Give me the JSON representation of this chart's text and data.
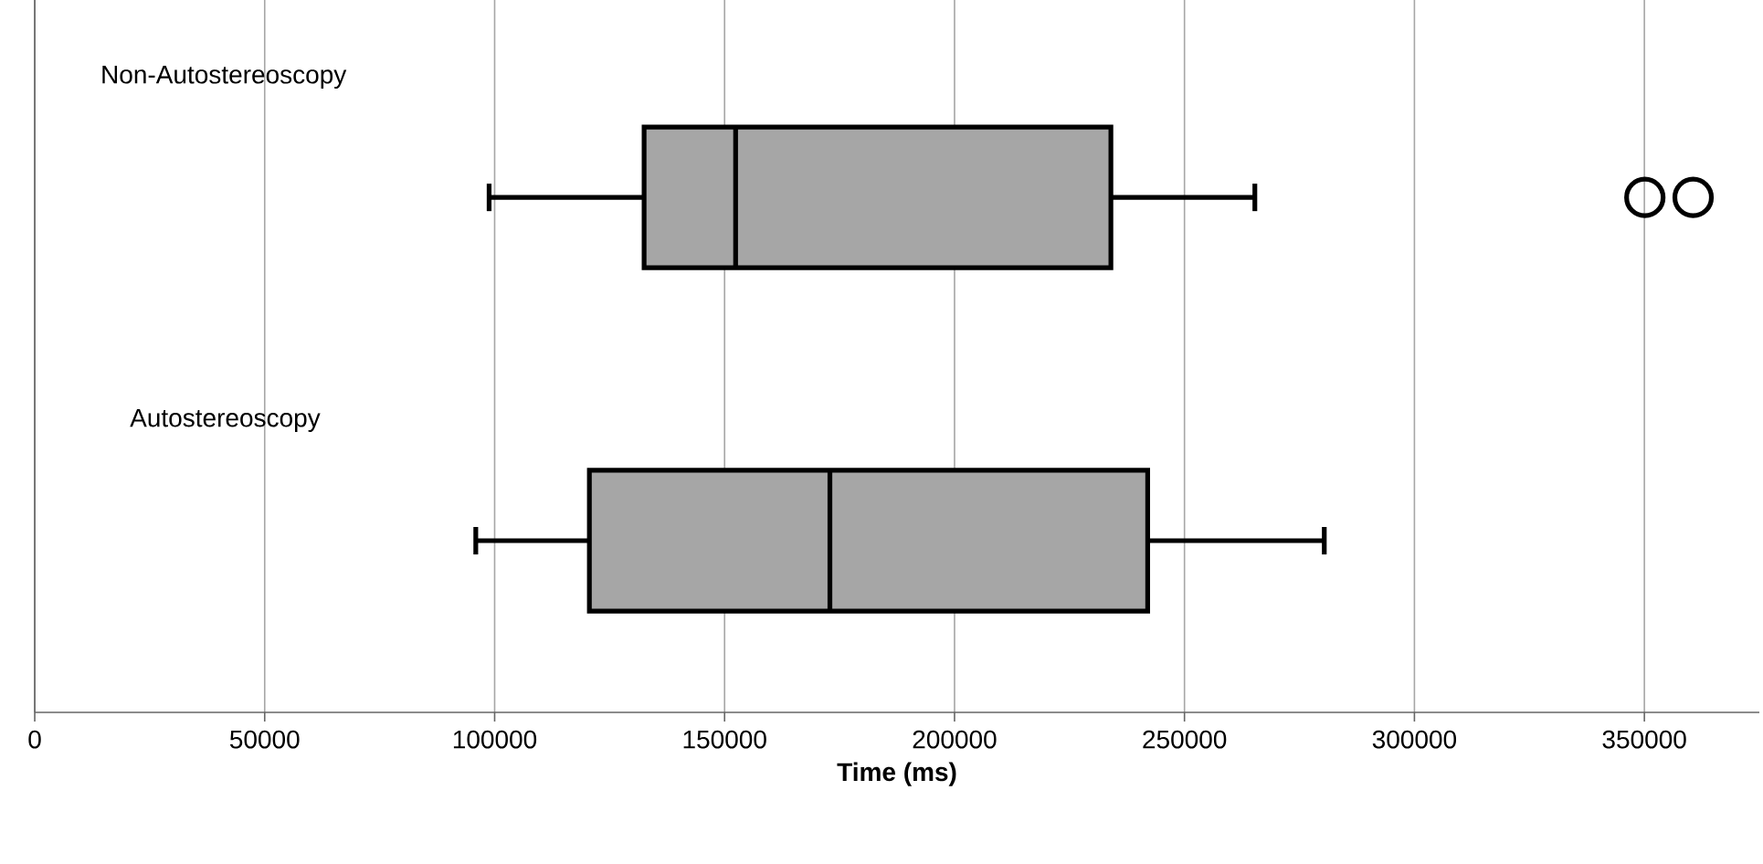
{
  "chart_data": {
    "type": "box",
    "orientation": "horizontal",
    "categories": [
      "Non-Autostereoscopy",
      "Autostereoscopy"
    ],
    "boxes": [
      {
        "low": 98800,
        "q1": 132500,
        "median": 152400,
        "q3": 234000,
        "high": 265300,
        "outliers": [
          350100,
          360600
        ]
      },
      {
        "low": 95900,
        "q1": 120600,
        "median": 172900,
        "q3": 242000,
        "high": 280400
      }
    ],
    "color": "#a6a6a6",
    "xlabel": "Time (ms)",
    "xlim": [
      0,
      375000
    ],
    "xticks": [
      0,
      50000,
      100000,
      150000,
      200000,
      250000,
      300000,
      350000
    ],
    "grid": "x"
  }
}
